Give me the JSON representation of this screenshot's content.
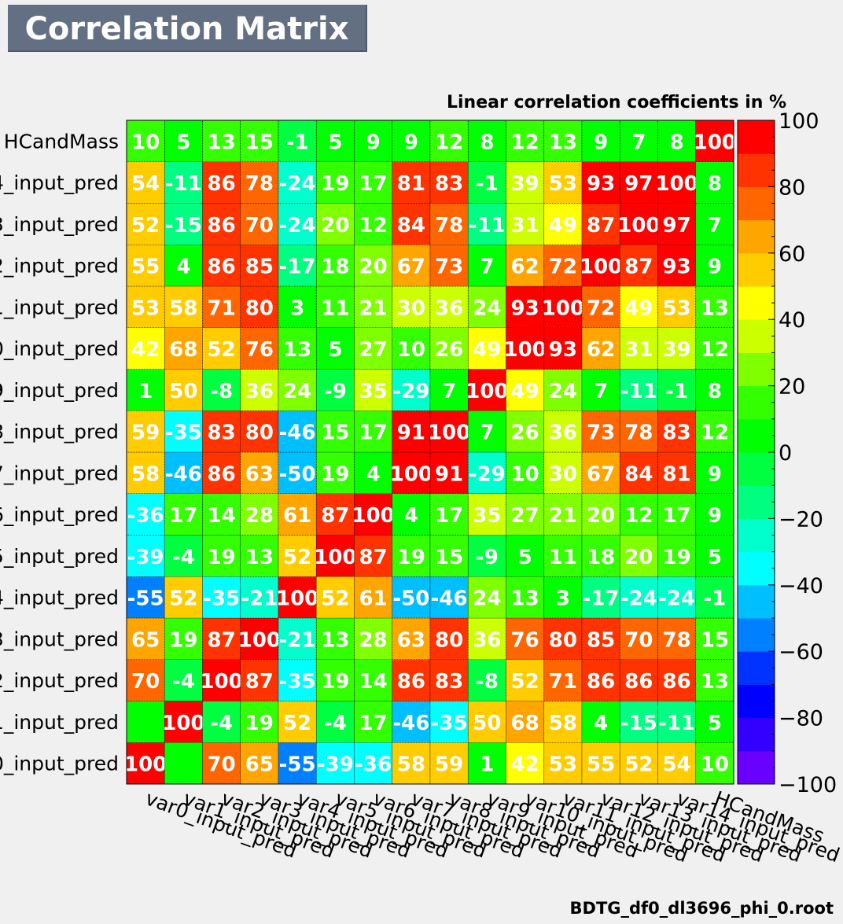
{
  "header": {
    "title": "Correlation Matrix"
  },
  "footer": {
    "filename": "BDTG_df0_dl3696_phi_0.root"
  },
  "chart_data": {
    "type": "heatmap",
    "title": "Linear correlation coefficients in %",
    "x_labels": [
      "var0_input_pred",
      "var1_input_pred",
      "var2_input_pred",
      "var3_input_pred",
      "var4_input_pred",
      "var5_input_pred",
      "var6_input_pred",
      "var7_input_pred",
      "var8_input_pred",
      "var9_input_pred",
      "var10_input_pred",
      "var11_input_pred",
      "var12_input_pred",
      "var13_input_pred",
      "var14_input_pred",
      "HCandMass"
    ],
    "y_labels_visible": [
      "0_input_pred",
      "1_input_pred",
      "2_input_pred",
      "3_input_pred",
      "4_input_pred",
      "5_input_pred",
      "6_input_pred",
      "7_input_pred",
      "8_input_pred",
      "9_input_pred",
      "0_input_pred",
      "1_input_pred",
      "2_input_pred",
      "3_input_pred",
      "4_input_pred",
      "HCandMass"
    ],
    "values": [
      [
        100,
        0,
        70,
        65,
        -55,
        -39,
        -36,
        58,
        59,
        1,
        42,
        53,
        55,
        52,
        54,
        10
      ],
      [
        0,
        100,
        -4,
        19,
        52,
        -4,
        17,
        -46,
        -35,
        50,
        68,
        58,
        4,
        -15,
        -11,
        5
      ],
      [
        70,
        -4,
        100,
        87,
        -35,
        19,
        14,
        86,
        83,
        -8,
        52,
        71,
        86,
        86,
        86,
        13
      ],
      [
        65,
        19,
        87,
        100,
        -21,
        13,
        28,
        63,
        80,
        36,
        76,
        80,
        85,
        70,
        78,
        15
      ],
      [
        -55,
        52,
        -35,
        -21,
        100,
        52,
        61,
        -50,
        -46,
        24,
        13,
        3,
        -17,
        -24,
        -24,
        -1
      ],
      [
        -39,
        -4,
        19,
        13,
        52,
        100,
        87,
        19,
        15,
        -9,
        5,
        11,
        18,
        20,
        19,
        5
      ],
      [
        -36,
        17,
        14,
        28,
        61,
        87,
        100,
        4,
        17,
        35,
        27,
        21,
        20,
        12,
        17,
        9
      ],
      [
        58,
        -46,
        86,
        63,
        -50,
        19,
        4,
        100,
        91,
        -29,
        10,
        30,
        67,
        84,
        81,
        9
      ],
      [
        59,
        -35,
        83,
        80,
        -46,
        15,
        17,
        91,
        100,
        7,
        26,
        36,
        73,
        78,
        83,
        12
      ],
      [
        1,
        50,
        -8,
        36,
        24,
        -9,
        35,
        -29,
        7,
        100,
        49,
        24,
        7,
        -11,
        -1,
        8
      ],
      [
        42,
        68,
        52,
        76,
        13,
        5,
        27,
        10,
        26,
        49,
        100,
        93,
        62,
        31,
        39,
        12
      ],
      [
        53,
        58,
        71,
        80,
        3,
        11,
        21,
        30,
        36,
        24,
        93,
        100,
        72,
        49,
        53,
        13
      ],
      [
        55,
        4,
        86,
        85,
        -17,
        18,
        20,
        67,
        73,
        7,
        62,
        72,
        100,
        87,
        93,
        9
      ],
      [
        52,
        -15,
        86,
        70,
        -24,
        20,
        12,
        84,
        78,
        -11,
        31,
        49,
        87,
        100,
        97,
        7
      ],
      [
        54,
        -11,
        86,
        78,
        -24,
        19,
        17,
        81,
        83,
        -1,
        39,
        53,
        93,
        97,
        100,
        8
      ],
      [
        10,
        5,
        13,
        15,
        -1,
        5,
        9,
        9,
        12,
        8,
        12,
        13,
        9,
        7,
        8,
        100
      ]
    ],
    "zlim": [
      -100,
      100
    ],
    "z_ticks": [
      "100",
      "80",
      "60",
      "40",
      "20",
      "0",
      "−20",
      "−40",
      "−60",
      "−80",
      "−100"
    ],
    "palette": [
      "#6a00ff",
      "#3300ff",
      "#0000ff",
      "#0033ff",
      "#0080ff",
      "#00bfff",
      "#00ffff",
      "#00ffcc",
      "#00ff80",
      "#00ff40",
      "#00ff00",
      "#33ff00",
      "#80ff00",
      "#ccff00",
      "#ffff00",
      "#ffcc00",
      "#ffa500",
      "#ff6600",
      "#ff3300",
      "#ff0000"
    ]
  }
}
